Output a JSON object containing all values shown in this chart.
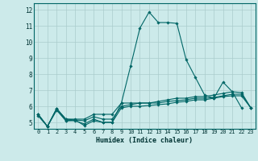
{
  "xlabel": "Humidex (Indice chaleur)",
  "bg_color": "#cceaea",
  "line_color": "#006666",
  "grid_color": "#aacccc",
  "xlim": [
    -0.5,
    23.5
  ],
  "ylim": [
    4.6,
    12.4
  ],
  "yticks": [
    5,
    6,
    7,
    8,
    9,
    10,
    11,
    12
  ],
  "xticks": [
    0,
    1,
    2,
    3,
    4,
    5,
    6,
    7,
    8,
    9,
    10,
    11,
    12,
    13,
    14,
    15,
    16,
    17,
    18,
    19,
    20,
    21,
    22,
    23
  ],
  "series": [
    [
      5.5,
      4.75,
      5.85,
      5.1,
      5.15,
      4.8,
      5.1,
      5.0,
      5.0,
      6.2,
      8.5,
      10.85,
      11.85,
      11.2,
      11.2,
      11.15,
      8.9,
      7.8,
      6.7,
      6.5,
      7.5,
      6.9,
      5.9,
      null
    ],
    [
      5.5,
      4.75,
      5.85,
      5.2,
      5.2,
      5.2,
      5.5,
      5.5,
      5.5,
      6.2,
      6.2,
      6.2,
      6.2,
      6.3,
      6.4,
      6.5,
      6.5,
      6.6,
      6.6,
      6.7,
      6.8,
      6.9,
      6.85,
      5.9
    ],
    [
      5.5,
      4.75,
      5.85,
      5.2,
      5.15,
      5.1,
      5.35,
      5.2,
      5.2,
      6.0,
      6.1,
      6.2,
      6.2,
      6.2,
      6.3,
      6.35,
      6.4,
      6.5,
      6.5,
      6.55,
      6.65,
      6.75,
      6.75,
      5.9
    ],
    [
      5.4,
      4.75,
      5.75,
      5.1,
      5.1,
      4.9,
      5.2,
      5.0,
      5.0,
      5.9,
      6.0,
      6.0,
      6.05,
      6.1,
      6.15,
      6.25,
      6.3,
      6.4,
      6.4,
      6.5,
      6.6,
      6.65,
      6.65,
      5.9
    ]
  ]
}
